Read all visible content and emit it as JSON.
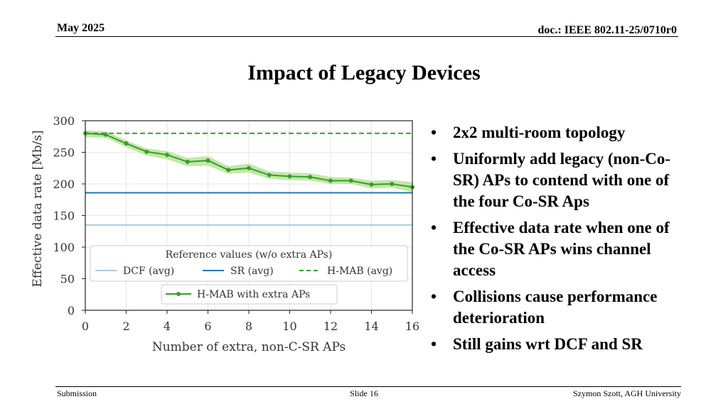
{
  "header": {
    "date": "May 2025",
    "doc": "doc.: IEEE 802.11-25/0710r0"
  },
  "title": "Impact of Legacy Devices",
  "bullets": [
    "2x2 multi-room topology",
    "Uniformly add legacy (non-Co-SR) APs to contend with one of the four Co-SR Aps",
    "Effective data rate when one of the Co-SR APs wins channel access",
    "Collisions cause performance deterioration",
    "Still gains wrt DCF and SR"
  ],
  "footer": {
    "left": "Submission",
    "center": "Slide 16",
    "right": "Szymon Szott, AGH University"
  },
  "chart_data": {
    "type": "line",
    "xlabel": "Number of extra, non-C-SR APs",
    "ylabel": "Effective data rate [Mb/s]",
    "xlim": [
      0,
      16
    ],
    "ylim": [
      0,
      300
    ],
    "xticks": [
      0,
      2,
      4,
      6,
      8,
      10,
      12,
      14,
      16
    ],
    "yticks": [
      0,
      50,
      100,
      150,
      200,
      250,
      300
    ],
    "grid": true,
    "reference_legend_title": "Reference values (w/o extra APs)",
    "reference_lines": [
      {
        "name": "DCF (avg)",
        "value": 135,
        "color": "#a6cee3",
        "style": "solid"
      },
      {
        "name": "SR (avg)",
        "value": 186,
        "color": "#1f78b4",
        "style": "solid"
      },
      {
        "name": "H-MAB (avg)",
        "value": 280,
        "color": "#33a02c",
        "style": "dashed"
      }
    ],
    "series": [
      {
        "name": "H-MAB with extra APs",
        "color": "#33a02c",
        "band_color": "#b2df8a",
        "x": [
          0,
          1,
          2,
          3,
          4,
          5,
          6,
          7,
          8,
          9,
          10,
          11,
          12,
          13,
          14,
          15,
          16
        ],
        "y": [
          280,
          278,
          264,
          251,
          246,
          235,
          237,
          222,
          225,
          214,
          212,
          211,
          205,
          205,
          199,
          200,
          195
        ],
        "lower": [
          274,
          273,
          258,
          245,
          239,
          228,
          229,
          216,
          218,
          208,
          206,
          205,
          200,
          200,
          193,
          194,
          187
        ],
        "upper": [
          285,
          283,
          269,
          256,
          252,
          241,
          244,
          228,
          232,
          220,
          218,
          217,
          211,
          210,
          205,
          206,
          203
        ]
      }
    ]
  }
}
